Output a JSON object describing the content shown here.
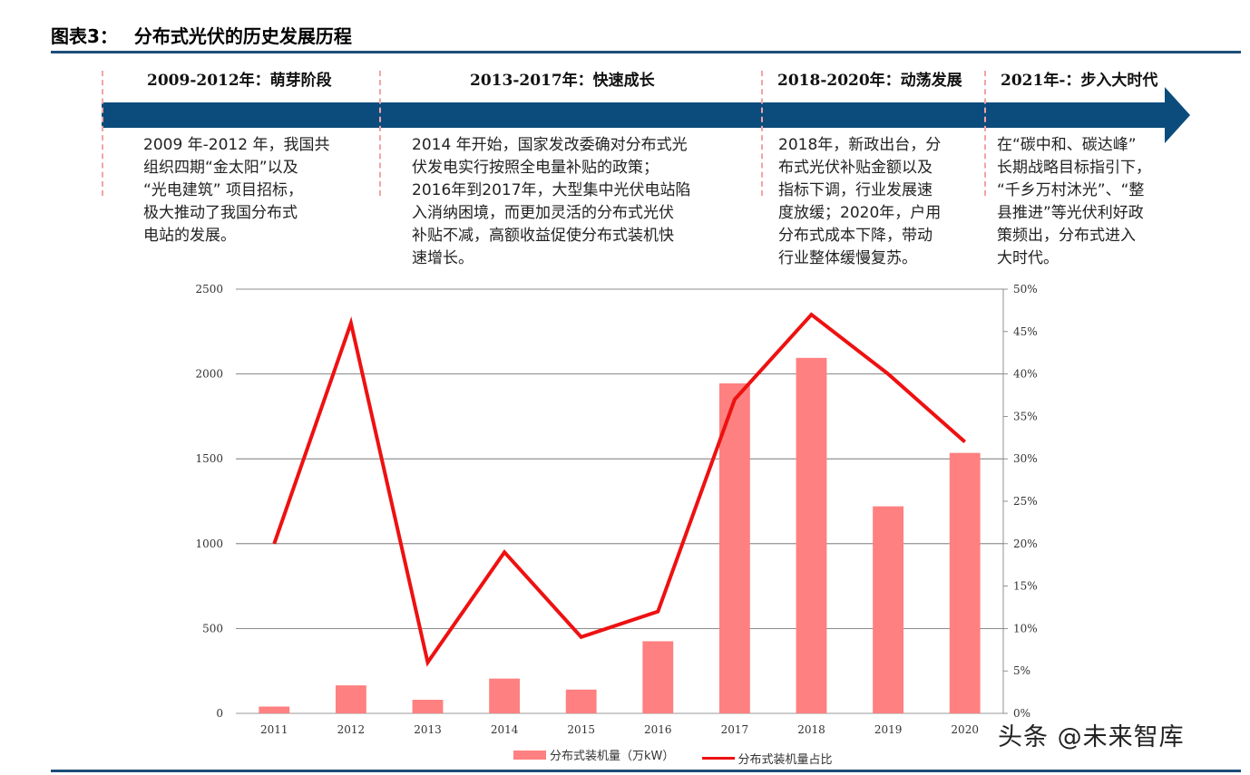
{
  "figure": {
    "label": "图表3：",
    "title": "分布式光伏的历史发展历程"
  },
  "timeline": [
    {
      "title": "2009-2012年：萌芽阶段",
      "lines": [
        "2009 年-2012 年，我国共",
        "组织四期“金太阳”以及",
        "“光电建筑” 项目招标，",
        "极大推动了我国分布式",
        "电站的发展。"
      ]
    },
    {
      "title": "2013-2017年：快速成长",
      "lines": [
        "2014 年开始，国家发改委确对分布式光",
        "伏发电实行按照全电量补贴的政策；",
        "2016年到2017年，大型集中光伏电站陷",
        "入消纳困境，而更加灵活的分布式光伏",
        "补贴不减，高额收益促使分布式装机快",
        "速增长。"
      ]
    },
    {
      "title": "2018-2020年：动荡发展",
      "lines": [
        "2018年，新政出台，分",
        "布式光伏补贴金额以及",
        "指标下调，行业发展速",
        "度放缓；2020年，户用",
        "分布式成本下降，带动",
        "行业整体缓慢复苏。"
      ]
    },
    {
      "title": "2021年-：步入大时代",
      "lines": [
        "在“碳中和、碳达峰”",
        "长期战略目标指引下，",
        "“千乡万村沐光”、“整",
        "县推进”等光伏利好政",
        "策频出，分布式进入",
        "大时代。"
      ]
    }
  ],
  "chart_data": {
    "type": "bar",
    "categories": [
      "2011",
      "2012",
      "2013",
      "2014",
      "2015",
      "2016",
      "2017",
      "2018",
      "2019",
      "2020"
    ],
    "series": [
      {
        "name": "分布式装机量（万kW）",
        "type": "bar",
        "axis": "left",
        "color": "#ff8080",
        "values": [
          40,
          165,
          80,
          205,
          140,
          425,
          1945,
          2095,
          1220,
          1535
        ]
      },
      {
        "name": "分布式装机量占比",
        "type": "line",
        "axis": "right",
        "color": "#ee1111",
        "values": [
          0.2,
          0.46,
          0.06,
          0.19,
          0.09,
          0.12,
          0.37,
          0.47,
          0.4,
          0.32
        ]
      }
    ],
    "ylim": [
      0,
      2500
    ],
    "yticks": [
      "0",
      "500",
      "1000",
      "1500",
      "2000",
      "2500"
    ],
    "y2lim": [
      0,
      0.5
    ],
    "y2ticks": [
      "0%",
      "5%",
      "10%",
      "15%",
      "20%",
      "25%",
      "30%",
      "35%",
      "40%",
      "45%",
      "50%"
    ],
    "grid": true,
    "legend": "bottom"
  },
  "watermark": "头条 @未来智库",
  "colors": {
    "arrow": "#0b4c7c",
    "rule": "#1f4e79",
    "divider": "#f2a3a7"
  }
}
